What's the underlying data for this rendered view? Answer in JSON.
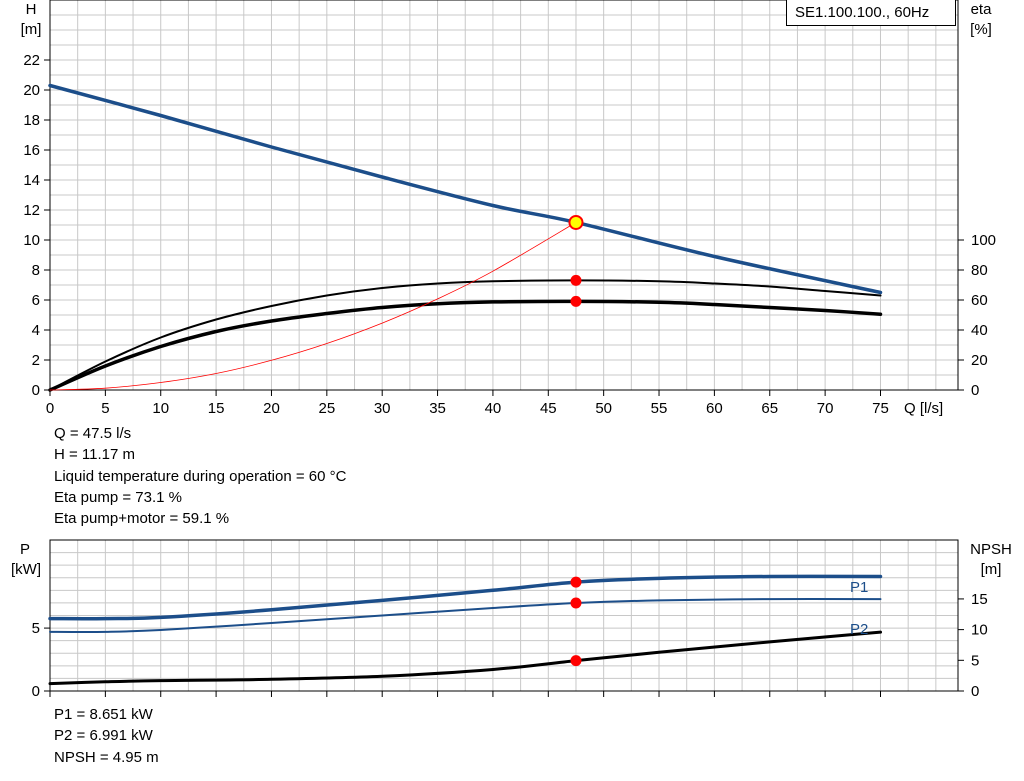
{
  "chart_data": [
    {
      "type": "line",
      "left_axis": {
        "label": "H",
        "unit": "[m]",
        "ticks": [
          0,
          2,
          4,
          6,
          8,
          10,
          12,
          14,
          16,
          18,
          20,
          22
        ],
        "ylim": [
          0,
          26
        ]
      },
      "right_axis": {
        "label": "eta",
        "unit": "[%]",
        "ticks": [
          0,
          20,
          40,
          60,
          80,
          100
        ],
        "ylim": [
          0,
          260
        ]
      },
      "x_axis": {
        "label": "Q [l/s]",
        "ticks": [
          0,
          5,
          10,
          15,
          20,
          25,
          30,
          35,
          40,
          45,
          50,
          55,
          60,
          65,
          70,
          75
        ],
        "xlim": [
          0,
          82
        ]
      },
      "grid": true,
      "legend": "SE1.100.100., 60Hz",
      "series": [
        {
          "axis": "left",
          "color": "#1c4e8a",
          "x": [
            0,
            10,
            20,
            30,
            40,
            47.5,
            60,
            75
          ],
          "y": [
            20.3,
            18.3,
            16.2,
            14.2,
            12.3,
            11.17,
            8.9,
            6.5
          ]
        },
        {
          "axis": "right",
          "color": "#000000",
          "x": [
            0,
            5,
            10,
            15,
            20,
            25,
            30,
            35,
            40,
            47.5,
            55,
            60,
            65,
            70,
            75
          ],
          "y": [
            0,
            19,
            35,
            47,
            56,
            63,
            68,
            71,
            72.5,
            73.1,
            72.5,
            71,
            69,
            66,
            63
          ]
        },
        {
          "axis": "right",
          "color": "#000000",
          "x": [
            0,
            5,
            10,
            15,
            20,
            25,
            30,
            35,
            40,
            47.5,
            55,
            60,
            65,
            70,
            75
          ],
          "y": [
            0,
            16,
            29,
            39,
            46,
            51,
            55,
            57.5,
            58.7,
            59.1,
            58.5,
            57,
            55,
            53,
            50.5
          ]
        },
        {
          "axis": "left",
          "color": "#ff0000",
          "x": [
            0,
            5,
            10,
            15,
            20,
            25,
            30,
            35,
            40,
            47.5
          ],
          "y": [
            0,
            0.12,
            0.5,
            1.1,
            1.98,
            3.1,
            4.46,
            6.07,
            7.92,
            11.17
          ]
        }
      ],
      "operating_point": {
        "x": 47.5,
        "y": 11.17,
        "eta_pump": 73.1,
        "eta_total": 59.1
      }
    },
    {
      "type": "line",
      "left_axis": {
        "label": "P",
        "unit": "[kW]",
        "ticks": [
          0,
          5
        ],
        "ylim": [
          0,
          12
        ]
      },
      "right_axis": {
        "label": "NPSH",
        "unit": "[m]",
        "ticks": [
          0,
          5,
          10,
          15
        ],
        "ylim": [
          0,
          24.6
        ]
      },
      "x_axis": {
        "xlim": [
          0,
          82
        ],
        "ticks": [
          0,
          5,
          10,
          15,
          20,
          25,
          30,
          35,
          40,
          45,
          50,
          55,
          60,
          65,
          70,
          75
        ]
      },
      "grid": true,
      "series": [
        {
          "name": "P1",
          "axis": "left",
          "color": "#1c4e8a",
          "x": [
            0,
            5,
            10,
            20,
            30,
            40,
            47.5,
            55,
            65,
            75
          ],
          "y": [
            5.75,
            5.75,
            5.85,
            6.45,
            7.2,
            8.0,
            8.651,
            8.95,
            9.1,
            9.1
          ]
        },
        {
          "name": "P2",
          "axis": "left",
          "color": "#1c4e8a",
          "x": [
            0,
            5,
            10,
            20,
            30,
            40,
            47.5,
            55,
            65,
            75
          ],
          "y": [
            4.7,
            4.7,
            4.85,
            5.4,
            6.0,
            6.6,
            6.991,
            7.2,
            7.3,
            7.3
          ]
        },
        {
          "name": "NPSH",
          "axis": "right",
          "color": "#000000",
          "x": [
            0,
            5,
            10,
            20,
            30,
            40,
            47.5,
            55,
            65,
            75
          ],
          "y": [
            1.2,
            1.5,
            1.7,
            1.9,
            2.4,
            3.5,
            4.95,
            6.3,
            8.0,
            9.6
          ]
        }
      ],
      "operating_point": {
        "x": 47.5,
        "p1": 8.651,
        "p2": 6.991,
        "npsh": 4.95
      }
    }
  ],
  "info_top": [
    "Q = 47.5 l/s",
    "H = 11.17 m",
    "Liquid temperature during operation = 60 °C",
    "Eta pump = 73.1 %",
    "Eta pump+motor = 59.1 %"
  ],
  "info_bottom": [
    "P1 = 8.651 kW",
    "P2 = 6.991 kW",
    "NPSH = 4.95 m"
  ],
  "labels": {
    "top_left_var": "H",
    "top_left_unit": "[m]",
    "top_right_var": "eta",
    "top_right_unit": "[%]",
    "x_label": "Q [l/s]",
    "legend": "SE1.100.100., 60Hz",
    "bot_left_var": "P",
    "bot_left_unit": "[kW]",
    "bot_right_var": "NPSH",
    "bot_right_unit": "[m]",
    "p1": "P1",
    "p2": "P2"
  },
  "colors": {
    "blue": "#1c4e8a",
    "grid": "#c8c8c8",
    "point": "#ff0000",
    "op_fill": "#ffff00"
  }
}
